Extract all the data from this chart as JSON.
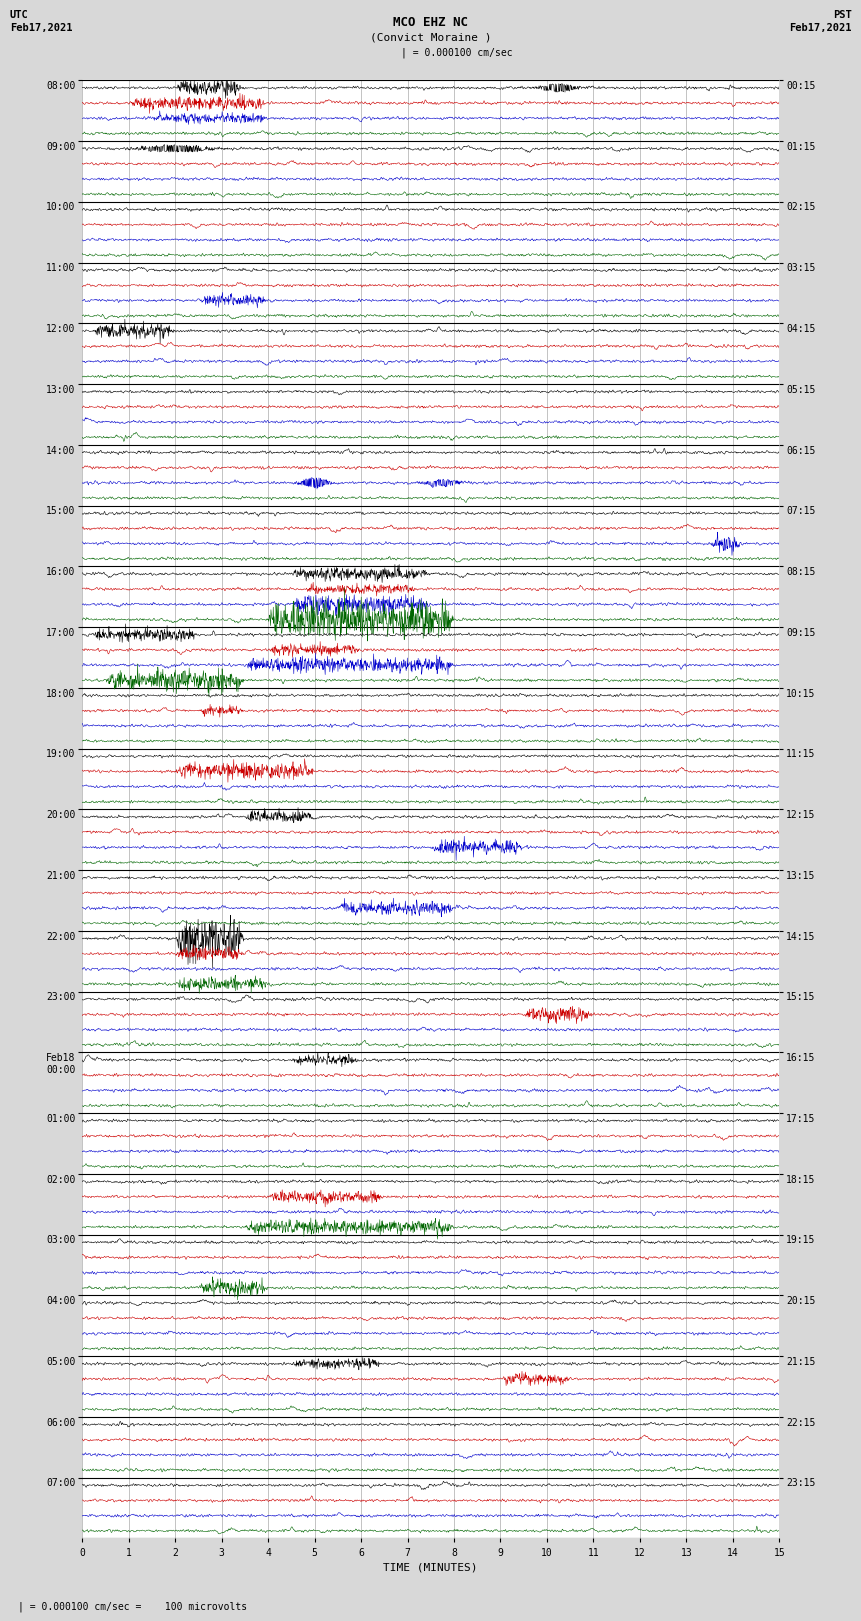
{
  "title_line1": "MCO EHZ NC",
  "title_line2": "(Convict Moraine )",
  "scale_label": "| = 0.000100 cm/sec",
  "left_header_line1": "UTC",
  "left_header_line2": "Feb17,2021",
  "right_header_line1": "PST",
  "right_header_line2": "Feb17,2021",
  "bottom_label": "TIME (MINUTES)",
  "footnote": "= 0.000100 cm/sec =    100 microvolts",
  "utc_labels": [
    "08:00",
    "09:00",
    "10:00",
    "11:00",
    "12:00",
    "13:00",
    "14:00",
    "15:00",
    "16:00",
    "17:00",
    "18:00",
    "19:00",
    "20:00",
    "21:00",
    "22:00",
    "23:00",
    "Feb18\n00:00",
    "01:00",
    "02:00",
    "03:00",
    "04:00",
    "05:00",
    "06:00",
    "07:00"
  ],
  "pst_labels": [
    "00:15",
    "01:15",
    "02:15",
    "03:15",
    "04:15",
    "05:15",
    "06:15",
    "07:15",
    "08:15",
    "09:15",
    "10:15",
    "11:15",
    "12:15",
    "13:15",
    "14:15",
    "15:15",
    "16:15",
    "17:15",
    "18:15",
    "19:15",
    "20:15",
    "21:15",
    "22:15",
    "23:15"
  ],
  "colors": [
    "black",
    "#cc0000",
    "#0000cc",
    "#006600"
  ],
  "bg_color": "#d8d8d8",
  "plot_bg": "#ffffff",
  "n_hours": 24,
  "n_channels": 4,
  "minutes": 15,
  "samples_per_trace": 1800,
  "fig_width": 8.5,
  "fig_height": 16.13,
  "dpi": 100,
  "grid_color": "#888888",
  "separator_color": "#000000",
  "tick_fontsize": 7,
  "title_fontsize": 9,
  "label_fontsize": 8,
  "base_noise": 0.12,
  "trace_amplitude": 0.35,
  "events": [
    {
      "hour": 0,
      "ch": 0,
      "xmin": 2.0,
      "xmax": 3.5,
      "amp": 0.7,
      "type": "burst"
    },
    {
      "hour": 0,
      "ch": 1,
      "xmin": 1.0,
      "xmax": 4.0,
      "amp": 0.5,
      "type": "burst"
    },
    {
      "hour": 0,
      "ch": 2,
      "xmin": 1.5,
      "xmax": 4.0,
      "amp": 0.4,
      "type": "burst"
    },
    {
      "hour": 0,
      "ch": 0,
      "xmin": 10.0,
      "xmax": 10.5,
      "amp": 0.5,
      "type": "spike"
    },
    {
      "hour": 1,
      "ch": 0,
      "xmin": 1.5,
      "xmax": 2.5,
      "amp": 0.4,
      "type": "spike"
    },
    {
      "hour": 3,
      "ch": 2,
      "xmin": 2.5,
      "xmax": 4.0,
      "amp": 0.5,
      "type": "burst"
    },
    {
      "hour": 4,
      "ch": 0,
      "xmin": 0.2,
      "xmax": 2.0,
      "amp": 0.6,
      "type": "burst"
    },
    {
      "hour": 6,
      "ch": 2,
      "xmin": 4.8,
      "xmax": 5.2,
      "amp": 0.6,
      "type": "spike"
    },
    {
      "hour": 6,
      "ch": 2,
      "xmin": 7.5,
      "xmax": 8.0,
      "amp": 0.4,
      "type": "spike"
    },
    {
      "hour": 7,
      "ch": 2,
      "xmin": 13.5,
      "xmax": 14.2,
      "amp": 0.7,
      "type": "burst"
    },
    {
      "hour": 8,
      "ch": 0,
      "xmin": 4.5,
      "xmax": 7.5,
      "amp": 0.5,
      "type": "burst"
    },
    {
      "hour": 8,
      "ch": 1,
      "xmin": 4.8,
      "xmax": 7.2,
      "amp": 0.4,
      "type": "burst"
    },
    {
      "hour": 8,
      "ch": 2,
      "xmin": 4.5,
      "xmax": 7.5,
      "amp": 0.7,
      "type": "burst"
    },
    {
      "hour": 8,
      "ch": 3,
      "xmin": 4.0,
      "xmax": 8.0,
      "amp": 1.5,
      "type": "burst"
    },
    {
      "hour": 9,
      "ch": 0,
      "xmin": 0.2,
      "xmax": 2.5,
      "amp": 0.5,
      "type": "burst"
    },
    {
      "hour": 9,
      "ch": 1,
      "xmin": 4.0,
      "xmax": 6.0,
      "amp": 0.4,
      "type": "burst"
    },
    {
      "hour": 9,
      "ch": 2,
      "xmin": 3.5,
      "xmax": 8.0,
      "amp": 0.6,
      "type": "burst"
    },
    {
      "hour": 9,
      "ch": 3,
      "xmin": 0.5,
      "xmax": 3.5,
      "amp": 0.8,
      "type": "burst"
    },
    {
      "hour": 10,
      "ch": 1,
      "xmin": 2.5,
      "xmax": 3.5,
      "amp": 0.4,
      "type": "burst"
    },
    {
      "hour": 11,
      "ch": 1,
      "xmin": 2.0,
      "xmax": 5.0,
      "amp": 0.6,
      "type": "burst"
    },
    {
      "hour": 12,
      "ch": 0,
      "xmin": 3.5,
      "xmax": 5.0,
      "amp": 0.5,
      "type": "burst"
    },
    {
      "hour": 12,
      "ch": 2,
      "xmin": 7.5,
      "xmax": 9.5,
      "amp": 0.6,
      "type": "burst"
    },
    {
      "hour": 13,
      "ch": 2,
      "xmin": 5.5,
      "xmax": 8.0,
      "amp": 0.5,
      "type": "burst"
    },
    {
      "hour": 14,
      "ch": 3,
      "xmin": 2.0,
      "xmax": 4.0,
      "amp": 0.5,
      "type": "burst"
    },
    {
      "hour": 14,
      "ch": 0,
      "xmin": 2.0,
      "xmax": 3.5,
      "amp": 1.8,
      "type": "burst"
    },
    {
      "hour": 14,
      "ch": 1,
      "xmin": 2.0,
      "xmax": 3.5,
      "amp": 0.5,
      "type": "burst"
    },
    {
      "hour": 15,
      "ch": 1,
      "xmin": 9.5,
      "xmax": 11.0,
      "amp": 0.6,
      "type": "burst"
    },
    {
      "hour": 16,
      "ch": 0,
      "xmin": 4.5,
      "xmax": 6.0,
      "amp": 0.4,
      "type": "burst"
    },
    {
      "hour": 18,
      "ch": 1,
      "xmin": 4.0,
      "xmax": 6.5,
      "amp": 0.5,
      "type": "burst"
    },
    {
      "hour": 18,
      "ch": 3,
      "xmin": 3.5,
      "xmax": 8.0,
      "amp": 0.6,
      "type": "burst"
    },
    {
      "hour": 19,
      "ch": 3,
      "xmin": 2.5,
      "xmax": 4.0,
      "amp": 0.7,
      "type": "burst"
    },
    {
      "hour": 21,
      "ch": 1,
      "xmin": 9.0,
      "xmax": 10.5,
      "amp": 0.5,
      "type": "burst"
    },
    {
      "hour": 21,
      "ch": 0,
      "xmin": 4.5,
      "xmax": 6.5,
      "amp": 0.4,
      "type": "burst"
    }
  ]
}
